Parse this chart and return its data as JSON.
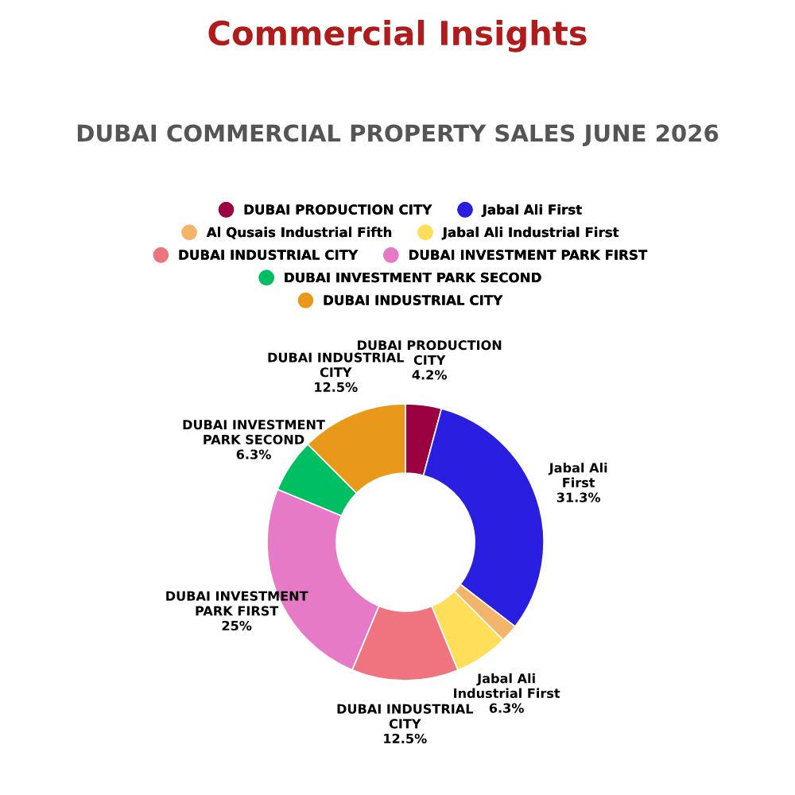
{
  "chart_data": {
    "type": "donut",
    "title": "Commercial Insights",
    "subtitle": "DUBAI COMMERCIAL PROPERTY SALES JUNE 2026",
    "categories": [
      "DUBAI PRODUCTION CITY",
      "Jabal Ali First",
      "Al Qusais Industrial Fifth",
      "Jabal Ali Industrial First",
      "DUBAI INDUSTRIAL CITY",
      "DUBAI INVESTMENT PARK FIRST",
      "DUBAI INVESTMENT PARK SECOND",
      "DUBAI INDUSTRIAL CITY"
    ],
    "values": [
      4.2,
      31.3,
      2.1,
      6.3,
      12.5,
      25,
      6.3,
      12.5
    ],
    "value_labels": [
      "4.2%",
      "31.3%",
      null,
      "6.3%",
      "12.5%",
      "25%",
      "6.3%",
      "12.5%"
    ],
    "colors": [
      "#9b0040",
      "#2a1fe0",
      "#f2b56b",
      "#ffde59",
      "#f07480",
      "#e67ac6",
      "#00bf63",
      "#e8991a"
    ],
    "legend": "top"
  }
}
